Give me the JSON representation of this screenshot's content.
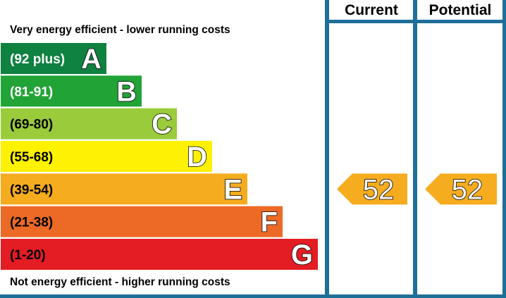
{
  "chart_data": {
    "type": "bar",
    "top_caption": "Very energy efficient - lower running costs",
    "bottom_caption": "Not energy efficient - higher running costs",
    "columns": {
      "current": "Current",
      "potential": "Potential"
    },
    "bands": [
      {
        "letter": "A",
        "range": "(92 plus)",
        "min": 92,
        "max": 100,
        "color": "#0f8140",
        "text_color": "#ffffff"
      },
      {
        "letter": "B",
        "range": "(81-91)",
        "min": 81,
        "max": 91,
        "color": "#22a336",
        "text_color": "#ffffff"
      },
      {
        "letter": "C",
        "range": "(69-80)",
        "min": 69,
        "max": 80,
        "color": "#9acb3b",
        "text_color": "#000000"
      },
      {
        "letter": "D",
        "range": "(55-68)",
        "min": 55,
        "max": 68,
        "color": "#fef102",
        "text_color": "#000000"
      },
      {
        "letter": "E",
        "range": "(39-54)",
        "min": 39,
        "max": 54,
        "color": "#f5ac1f",
        "text_color": "#000000"
      },
      {
        "letter": "F",
        "range": "(21-38)",
        "min": 21,
        "max": 38,
        "color": "#ec6a26",
        "text_color": "#000000"
      },
      {
        "letter": "G",
        "range": "(1-20)",
        "min": 1,
        "max": 20,
        "color": "#e31d23",
        "text_color": "#000000"
      }
    ],
    "current": {
      "value": 52,
      "band": "E",
      "label": "52"
    },
    "potential": {
      "value": 52,
      "band": "E",
      "label": "52"
    },
    "frame_color": "#1e6f98"
  }
}
